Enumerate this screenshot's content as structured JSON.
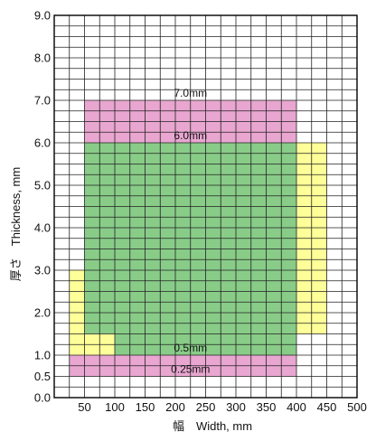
{
  "chart_data": {
    "type": "area",
    "title": "",
    "xlabel": "幅　Width, mm",
    "ylabel": "厚さ　Thickness, mm",
    "xlim": [
      0,
      500
    ],
    "ylim": [
      0,
      9.0
    ],
    "x_ticks": [
      "50",
      "100",
      "150",
      "200",
      "250",
      "300",
      "350",
      "400",
      "450",
      "500"
    ],
    "x_tick_values": [
      50,
      100,
      150,
      200,
      250,
      300,
      350,
      400,
      450,
      500
    ],
    "y_ticks": [
      "0.0",
      "0.5",
      "1.0",
      "2.0",
      "3.0",
      "4.0",
      "5.0",
      "6.0",
      "7.0",
      "8.0",
      "9.0"
    ],
    "y_tick_values": [
      0,
      0.5,
      1.0,
      2.0,
      3.0,
      4.0,
      5.0,
      6.0,
      7.0,
      8.0,
      9.0
    ],
    "grid": true,
    "regions": [
      {
        "color": "#ffff99",
        "x": [
          25,
          100
        ],
        "y": [
          1.0,
          3.0
        ]
      },
      {
        "color": "#ffff99",
        "x": [
          400,
          450
        ],
        "y": [
          1.5,
          6.0
        ]
      },
      {
        "color": "#e8a6d0",
        "x": [
          50,
          400
        ],
        "y": [
          6.0,
          7.0
        ]
      },
      {
        "color": "#e8a6d0",
        "x": [
          25,
          400
        ],
        "y": [
          0.5,
          1.0
        ]
      },
      {
        "color": "#88cc88",
        "x": [
          50,
          400
        ],
        "y": [
          1.0,
          6.0
        ]
      },
      {
        "color": "#ffff99",
        "x": [
          50,
          100
        ],
        "y": [
          1.0,
          1.5
        ]
      }
    ],
    "annotations": [
      {
        "text": "7.0mm",
        "x": 225,
        "y": 7.0
      },
      {
        "text": "6.0mm",
        "x": 225,
        "y": 6.0
      },
      {
        "text": "0.5mm",
        "x": 225,
        "y": 1.0
      },
      {
        "text": "0.25mm",
        "x": 225,
        "y": 0.5
      }
    ]
  }
}
